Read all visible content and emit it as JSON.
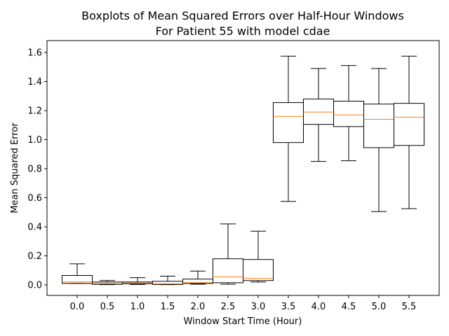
{
  "chart_data": {
    "type": "box",
    "title": "Boxplots of Mean Squared Errors over Half-Hour Windows",
    "subtitle": "For Patient 55 with model cdae",
    "xlabel": "Window Start Time (Hour)",
    "ylabel": "Mean Squared Error",
    "ylim": [
      -0.07,
      1.66
    ],
    "y_ticks": [
      "0.0",
      "0.2",
      "0.4",
      "0.6",
      "0.8",
      "1.0",
      "1.2",
      "1.4",
      "1.6"
    ],
    "grid": false,
    "categories": [
      "0.0",
      "0.5",
      "1.0",
      "1.5",
      "2.0",
      "2.5",
      "3.0",
      "3.5",
      "4.0",
      "4.5",
      "5.0",
      "5.5"
    ],
    "boxes": [
      {
        "whisker_low": 0.01,
        "q1": 0.01,
        "median": 0.02,
        "q3": 0.065,
        "whisker_high": 0.145
      },
      {
        "whisker_low": 0.002,
        "q1": 0.004,
        "median": 0.01,
        "q3": 0.02,
        "whisker_high": 0.03
      },
      {
        "whisker_low": 0.003,
        "q1": 0.008,
        "median": 0.013,
        "q3": 0.02,
        "whisker_high": 0.05
      },
      {
        "whisker_low": 0.002,
        "q1": 0.003,
        "median": 0.008,
        "q3": 0.025,
        "whisker_high": 0.06
      },
      {
        "whisker_low": 0.005,
        "q1": 0.01,
        "median": 0.015,
        "q3": 0.04,
        "whisker_high": 0.095
      },
      {
        "whisker_low": 0.005,
        "q1": 0.015,
        "median": 0.055,
        "q3": 0.18,
        "whisker_high": 0.42
      },
      {
        "whisker_low": 0.02,
        "q1": 0.03,
        "median": 0.045,
        "q3": 0.175,
        "whisker_high": 0.37
      },
      {
        "whisker_low": 0.575,
        "q1": 0.98,
        "median": 1.16,
        "q3": 1.255,
        "whisker_high": 1.575
      },
      {
        "whisker_low": 0.85,
        "q1": 1.105,
        "median": 1.19,
        "q3": 1.28,
        "whisker_high": 1.49
      },
      {
        "whisker_low": 0.855,
        "q1": 1.09,
        "median": 1.17,
        "q3": 1.265,
        "whisker_high": 1.51
      },
      {
        "whisker_low": 0.505,
        "q1": 0.945,
        "median": 1.14,
        "q3": 1.245,
        "whisker_high": 1.49
      },
      {
        "whisker_low": 0.525,
        "q1": 0.96,
        "median": 1.155,
        "q3": 1.25,
        "whisker_high": 1.575
      }
    ],
    "colors": {
      "box": "#000000",
      "median": "#ff7f0e"
    }
  }
}
